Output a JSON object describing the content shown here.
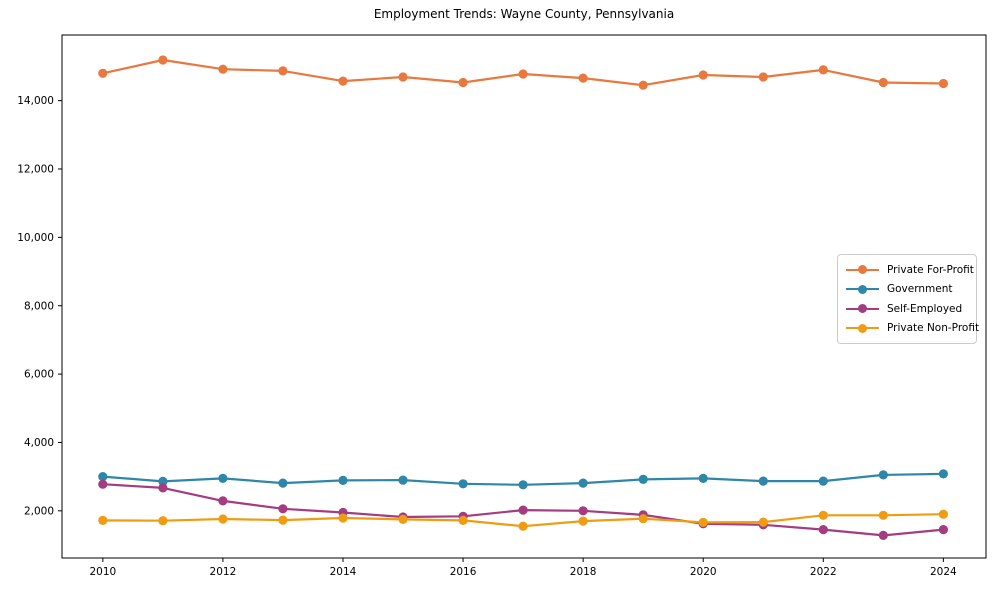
{
  "chart_data": {
    "type": "line",
    "title": "Employment Trends: Wayne County, Pennsylvania",
    "xlabel": "",
    "ylabel": "",
    "grid": false,
    "legend_position": "center-right",
    "xlim": [
      2009.32,
      2024.71
    ],
    "ylim": [
      620,
      15920
    ],
    "x": [
      2010,
      2011,
      2012,
      2013,
      2014,
      2015,
      2016,
      2017,
      2018,
      2019,
      2020,
      2021,
      2022,
      2023,
      2024
    ],
    "x_ticks": [
      2010,
      2012,
      2014,
      2016,
      2018,
      2020,
      2022,
      2024
    ],
    "x_tick_labels": [
      "2010",
      "2012",
      "2014",
      "2016",
      "2018",
      "2020",
      "2022",
      "2024"
    ],
    "y_ticks": [
      2000,
      4000,
      6000,
      8000,
      10000,
      12000,
      14000
    ],
    "y_tick_labels": [
      "2,000",
      "4,000",
      "6,000",
      "8,000",
      "10,000",
      "12,000",
      "14,000"
    ],
    "series": [
      {
        "name": "Private For-Profit",
        "color": "#e8783d",
        "values": [
          14800,
          15190,
          14920,
          14870,
          14570,
          14690,
          14530,
          14780,
          14660,
          14450,
          14750,
          14690,
          14900,
          14530,
          14500
        ]
      },
      {
        "name": "Government",
        "color": "#2e87a8",
        "values": [
          3000,
          2860,
          2950,
          2810,
          2890,
          2900,
          2790,
          2760,
          2810,
          2920,
          2950,
          2870,
          2870,
          3050,
          3080
        ]
      },
      {
        "name": "Self-Employed",
        "color": "#a33c80",
        "values": [
          2780,
          2670,
          2290,
          2060,
          1950,
          1820,
          1840,
          2020,
          2000,
          1880,
          1620,
          1590,
          1450,
          1280,
          1450
        ]
      },
      {
        "name": "Private Non-Profit",
        "color": "#f09c13",
        "values": [
          1720,
          1710,
          1760,
          1730,
          1790,
          1750,
          1720,
          1550,
          1700,
          1770,
          1660,
          1670,
          1870,
          1870,
          1900
        ]
      }
    ]
  }
}
